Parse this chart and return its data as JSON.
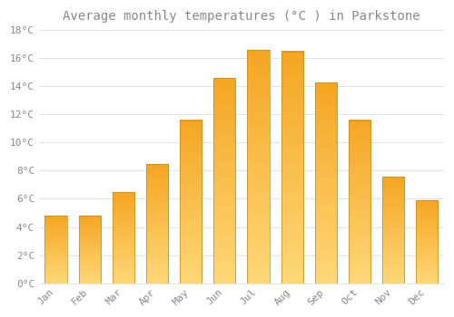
{
  "title": "Average monthly temperatures (°C ) in Parkstone",
  "months": [
    "Jan",
    "Feb",
    "Mar",
    "Apr",
    "May",
    "Jun",
    "Jul",
    "Aug",
    "Sep",
    "Oct",
    "Nov",
    "Dec"
  ],
  "values": [
    4.8,
    4.8,
    6.5,
    8.5,
    11.6,
    14.6,
    16.6,
    16.5,
    14.3,
    11.6,
    7.6,
    5.9
  ],
  "bar_color_dark": "#F5A623",
  "bar_color_light": "#FFD878",
  "bar_edge_color": "#C8871A",
  "background_color": "#FFFFFF",
  "grid_color": "#DDDDDD",
  "text_color": "#888888",
  "ylim": [
    0,
    18
  ],
  "yticks": [
    0,
    2,
    4,
    6,
    8,
    10,
    12,
    14,
    16,
    18
  ],
  "title_fontsize": 10,
  "tick_fontsize": 8,
  "font_family": "monospace"
}
